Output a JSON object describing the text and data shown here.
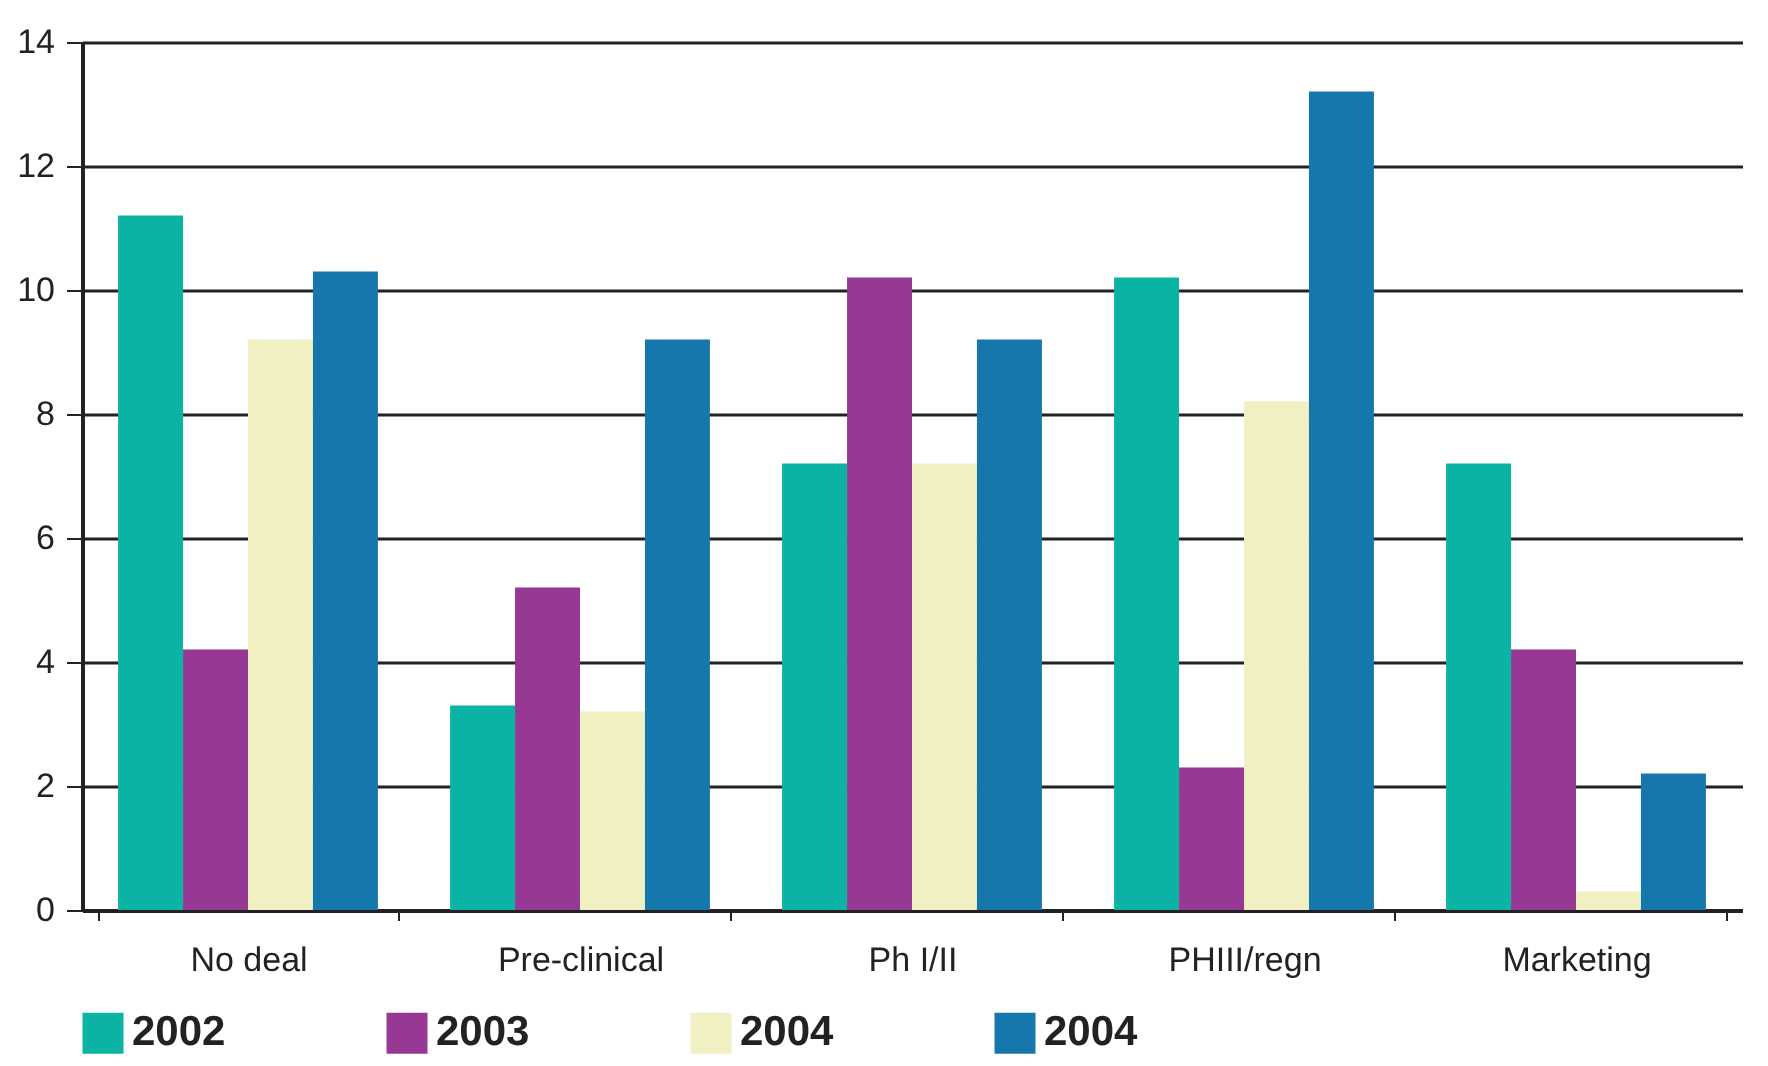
{
  "chart_data": {
    "type": "bar",
    "categories": [
      "No deal",
      "Pre-clinical",
      "Ph I/II",
      "PHIII/regn",
      "Marketing"
    ],
    "series": [
      {
        "name": "2002",
        "color": "#0ab3a3",
        "values": [
          11.2,
          3.3,
          7.2,
          10.2,
          7.2
        ]
      },
      {
        "name": "2003",
        "color": "#963894",
        "values": [
          4.2,
          5.2,
          10.2,
          2.3,
          4.2
        ]
      },
      {
        "name": "2004",
        "color": "#f0f0c3",
        "values": [
          9.2,
          3.2,
          7.2,
          8.2,
          0.3
        ]
      },
      {
        "name": "2004",
        "color": "#1677ad",
        "values": [
          10.3,
          9.2,
          9.2,
          13.2,
          2.2
        ]
      }
    ],
    "ylim": [
      0,
      14
    ],
    "yticks": [
      0,
      2,
      4,
      6,
      8,
      10,
      12,
      14
    ],
    "grid": "y",
    "legend": "bottom"
  }
}
